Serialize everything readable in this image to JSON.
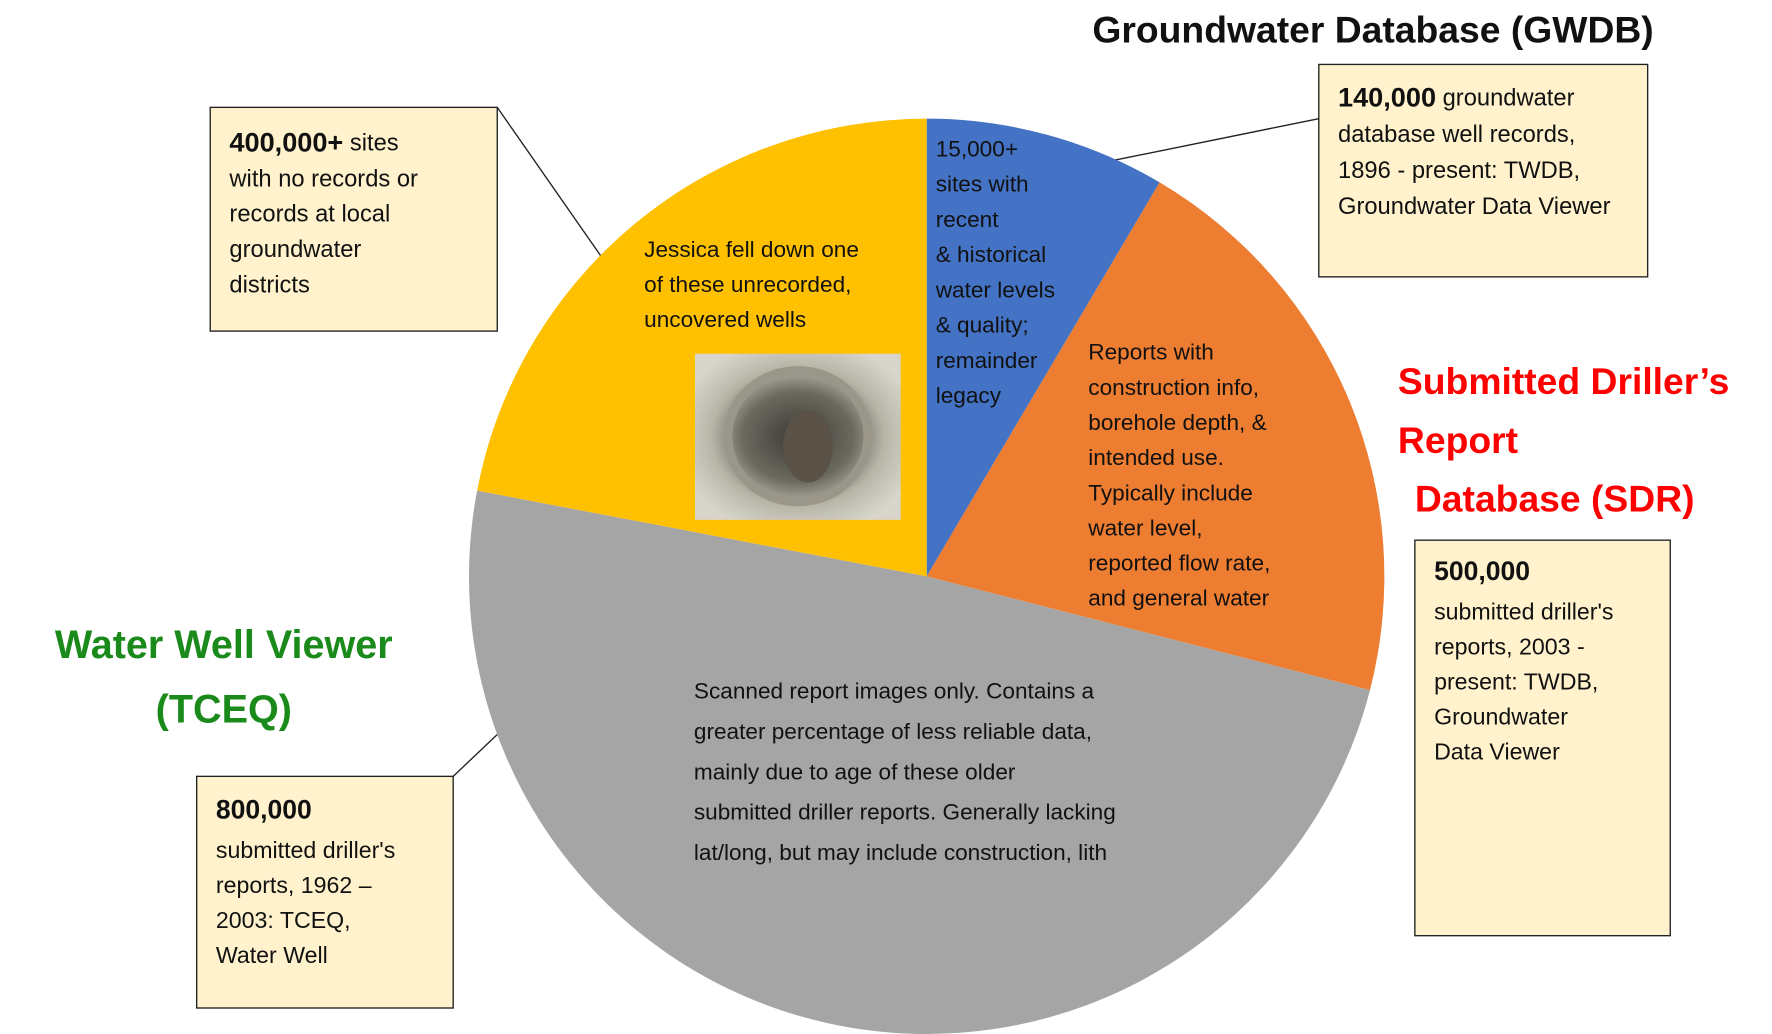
{
  "chart_data": {
    "type": "pie",
    "values": [
      8.5,
      20.5,
      49,
      22
    ],
    "colors": [
      "#4472c4",
      "#ed7d31",
      "#a5a5a5",
      "#ffc000"
    ],
    "slice_texts": [
      [
        "15,000+",
        "sites with",
        "recent",
        "& historical",
        "water levels",
        "& quality;",
        "remainder",
        "legacy"
      ],
      [
        "Reports with",
        "construction info,",
        "borehole depth, &",
        "intended use.",
        "Typically include",
        "water level,",
        "reported flow rate,",
        "and general water"
      ],
      [
        "Scanned report images only. Contains a",
        "greater percentage of less reliable data,",
        "mainly due to age of these older",
        "submitted driller reports. Generally lacking",
        "lat/long, but may include construction, lith"
      ],
      [
        "Jessica fell down one",
        "of these unrecorded,",
        "uncovered wells"
      ]
    ]
  },
  "titles": {
    "gwdb": "Groundwater Database (GWDB)",
    "sdr": [
      "Submitted Driller’s",
      "Report",
      "Database (SDR)"
    ],
    "tceq": [
      "Water Well Viewer",
      "(TCEQ)"
    ]
  },
  "boxes": [
    {
      "heading": "140,000",
      "heading_rest": " groundwater",
      "lines": [
        "database well records,",
        "1896 - present: TWDB,",
        "Groundwater Data Viewer"
      ]
    },
    {
      "heading": "500,000",
      "lines": [
        "submitted driller's",
        "reports, 2003 -",
        "present: TWDB,",
        "Groundwater",
        "Data Viewer"
      ]
    },
    {
      "heading": "800,000",
      "lines": [
        "submitted driller's",
        "reports, 1962 –",
        "2003: TCEQ,",
        "Water Well"
      ]
    },
    {
      "heading": "400,000+",
      "heading_rest": " sites",
      "lines": [
        "with no records or",
        "records at local",
        "groundwater",
        "districts"
      ]
    }
  ]
}
